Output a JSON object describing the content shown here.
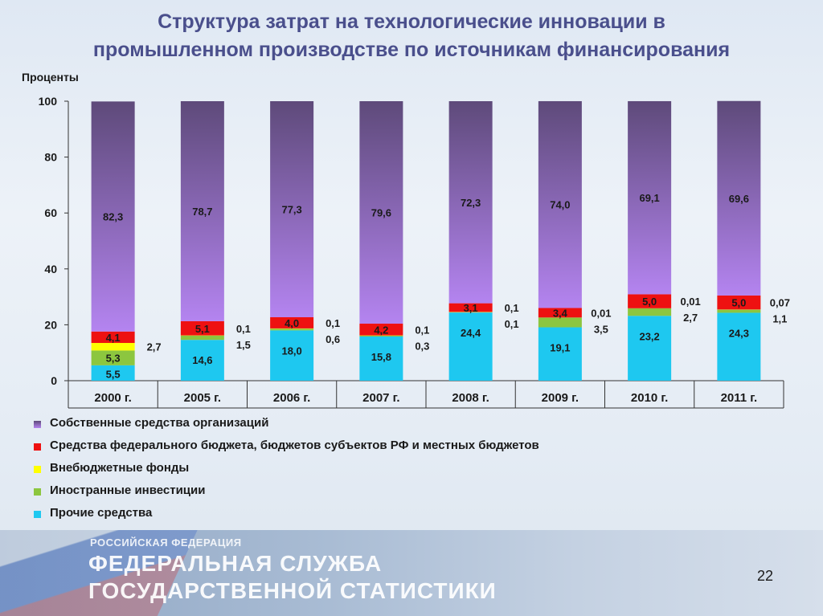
{
  "title_line1": "Структура затрат на технологические инновации в",
  "title_line2": "промышленном производстве по источникам финансирования",
  "page_number": "22",
  "footer": {
    "small": "РОССИЙСКАЯ ФЕДЕРАЦИЯ",
    "line1": "ФЕДЕРАЛЬНАЯ СЛУЖБА",
    "line2": "ГОСУДАРСТВЕННОЙ СТАТИСТИКИ"
  },
  "colors": {
    "own": "#a070dc",
    "budget": "#ee1111",
    "offbudget": "#ffff00",
    "foreign": "#8cc63f",
    "other": "#1ec8f0"
  },
  "chart_data": {
    "type": "bar",
    "stacked": true,
    "ylabel": "Проценты",
    "ylim": [
      0,
      100
    ],
    "yticks": [
      0,
      20,
      40,
      60,
      80,
      100
    ],
    "categories": [
      "2000 г.",
      "2005 г.",
      "2006 г.",
      "2007 г.",
      "2008 г.",
      "2009 г.",
      "2010 г.",
      "2011 г."
    ],
    "series": [
      {
        "key": "other",
        "name": "Прочие средства",
        "values": [
          5.5,
          14.6,
          18.0,
          15.8,
          24.4,
          19.1,
          23.2,
          24.3
        ],
        "labels": [
          "5,5",
          "14,6",
          "18,0",
          "15,8",
          "24,4",
          "19,1",
          "23,2",
          "24,3"
        ]
      },
      {
        "key": "foreign",
        "name": "Иностранные инвестиции",
        "values": [
          5.3,
          1.5,
          0.6,
          0.3,
          0.1,
          3.5,
          2.7,
          1.1
        ],
        "labels": [
          "5,3",
          "1,5",
          "0,6",
          "0,3",
          "0,1",
          "3,5",
          "2,7",
          "1,1"
        ]
      },
      {
        "key": "offbudget",
        "name": "Внебюджетные фонды",
        "values": [
          2.7,
          0.1,
          0.1,
          0.1,
          0.1,
          0.01,
          0.01,
          0.07
        ],
        "labels": [
          "2,7",
          "0,1",
          "0,1",
          "0,1",
          "0,1",
          "0,01",
          "0,01",
          "0,07"
        ]
      },
      {
        "key": "budget",
        "name": "Средства федерального бюджета, бюджетов субъектов РФ и местных бюджетов",
        "values": [
          4.1,
          5.1,
          4.0,
          4.2,
          3.1,
          3.4,
          5.0,
          5.0
        ],
        "labels": [
          "4,1",
          "5,1",
          "4,0",
          "4,2",
          "3,1",
          "3,4",
          "5,0",
          "5,0"
        ]
      },
      {
        "key": "own",
        "name": "Собственные средства организаций",
        "values": [
          82.3,
          78.7,
          77.3,
          79.6,
          72.3,
          74.0,
          69.1,
          69.6
        ],
        "labels": [
          "82,3",
          "78,7",
          "77,3",
          "79,6",
          "72,3",
          "74,0",
          "69,1",
          "69,6"
        ]
      }
    ]
  },
  "legend": [
    {
      "key": "own",
      "label": "Собственные средства организаций"
    },
    {
      "key": "budget",
      "label": "Средства федерального бюджета, бюджетов субъектов РФ и местных бюджетов"
    },
    {
      "key": "offbudget",
      "label": "Внебюджетные фонды"
    },
    {
      "key": "foreign",
      "label": "Иностранные инвестиции"
    },
    {
      "key": "other",
      "label": "Прочие средства"
    }
  ]
}
